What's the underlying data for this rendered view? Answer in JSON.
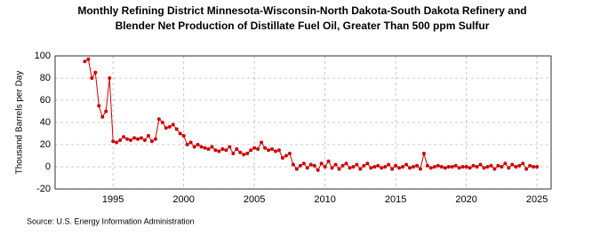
{
  "chart_data": {
    "type": "line",
    "title": [
      "Monthly Refining District Minnesota-Wisconsin-North Dakota-South Dakota Refinery and",
      "Blender Net Production of Distillate Fuel Oil, Greater Than 500 ppm Sulfur"
    ],
    "y_label": "Thousand Barrels per Day",
    "source": "Source: U.S. Energy Information Administration",
    "color": "#cc0000",
    "grid": true,
    "xlim": [
      1990.9,
      2026
    ],
    "xticks": [
      1995,
      2000,
      2005,
      2010,
      2015,
      2020,
      2025
    ],
    "ylim": [
      -20,
      100
    ],
    "yticks": [
      -20,
      0,
      20,
      40,
      60,
      80,
      100
    ],
    "x": [
      1993,
      1993.25,
      1993.5,
      1993.75,
      1994,
      1994.25,
      1994.5,
      1994.75,
      1995,
      1995.25,
      1995.5,
      1995.75,
      1996,
      1996.25,
      1996.5,
      1996.75,
      1997,
      1997.25,
      1997.5,
      1997.75,
      1998,
      1998.25,
      1998.5,
      1998.75,
      1999,
      1999.25,
      1999.5,
      1999.75,
      2000,
      2000.25,
      2000.5,
      2000.75,
      2001,
      2001.25,
      2001.5,
      2001.75,
      2002,
      2002.25,
      2002.5,
      2002.75,
      2003,
      2003.25,
      2003.5,
      2003.75,
      2004,
      2004.25,
      2004.5,
      2004.75,
      2005,
      2005.25,
      2005.5,
      2005.75,
      2006,
      2006.25,
      2006.5,
      2006.75,
      2007,
      2007.25,
      2007.5,
      2007.75,
      2008,
      2008.25,
      2008.5,
      2008.75,
      2009,
      2009.25,
      2009.5,
      2009.75,
      2010,
      2010.25,
      2010.5,
      2010.75,
      2011,
      2011.25,
      2011.5,
      2011.75,
      2012,
      2012.25,
      2012.5,
      2012.75,
      2013,
      2013.25,
      2013.5,
      2013.75,
      2014,
      2014.25,
      2014.5,
      2014.75,
      2015,
      2015.25,
      2015.5,
      2015.75,
      2016,
      2016.25,
      2016.5,
      2016.75,
      2017,
      2017.25,
      2017.5,
      2017.75,
      2018,
      2018.25,
      2018.5,
      2018.75,
      2019,
      2019.25,
      2019.5,
      2019.75,
      2020,
      2020.25,
      2020.5,
      2020.75,
      2021,
      2021.25,
      2021.5,
      2021.75,
      2022,
      2022.25,
      2022.5,
      2022.75,
      2023,
      2023.25,
      2023.5,
      2023.75,
      2024,
      2024.25,
      2024.5,
      2024.75,
      2025
    ],
    "values": [
      95,
      97,
      80,
      85,
      55,
      45,
      50,
      80,
      23,
      22,
      24,
      27,
      25,
      24,
      26,
      25,
      26,
      24,
      28,
      23,
      25,
      43,
      40,
      35,
      36,
      38,
      34,
      30,
      28,
      20,
      22,
      18,
      20,
      18,
      17,
      16,
      18,
      15,
      14,
      16,
      15,
      18,
      12,
      16,
      13,
      11,
      12,
      15,
      17,
      16,
      22,
      17,
      15,
      16,
      14,
      15,
      8,
      10,
      12,
      2,
      -2,
      1,
      3,
      -1,
      2,
      1,
      -3,
      3,
      0,
      5,
      -1,
      2,
      -2,
      1,
      3,
      -1,
      0,
      2,
      -2,
      1,
      3,
      -1,
      0,
      1,
      -1,
      0,
      2,
      -2,
      1,
      -1,
      0,
      2,
      -1,
      0,
      1,
      -2,
      12,
      1,
      -1,
      0,
      1,
      0,
      -1,
      0,
      0,
      1,
      -1,
      0,
      0,
      -1,
      1,
      0,
      2,
      -1,
      0,
      1,
      -2,
      1,
      0,
      3,
      -1,
      2,
      0,
      1,
      3,
      -2,
      1,
      0,
      0
    ]
  }
}
